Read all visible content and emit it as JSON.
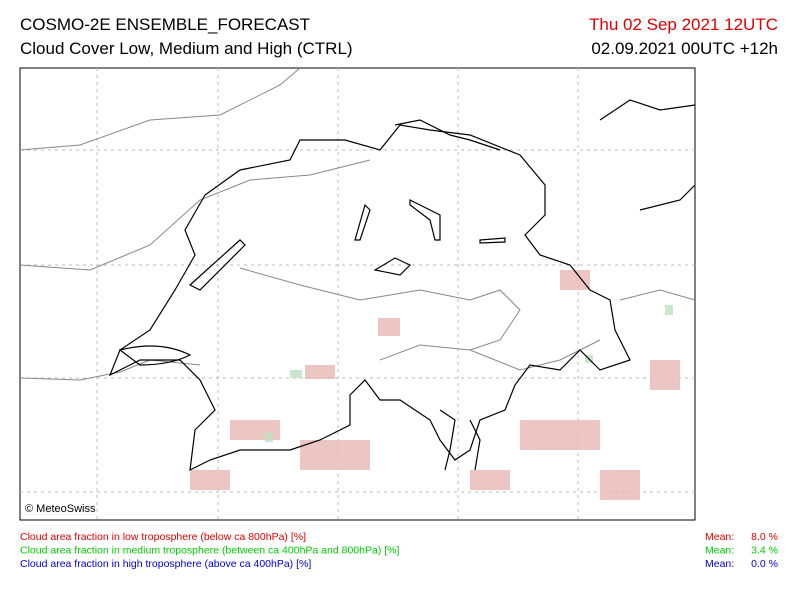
{
  "header": {
    "title": "COSMO-2E ENSEMBLE_FORECAST",
    "subtitle": "Cloud Cover Low, Medium and High (CTRL)",
    "valid_time": "Thu 02 Sep 2021 12UTC",
    "run_time": "02.09.2021 00UTC +12h"
  },
  "map": {
    "copyright": "© MeteoSwiss"
  },
  "legend": [
    {
      "label": "Cloud area fraction in low troposphere (below ca 800hPa) [%]",
      "mean_label": "Mean:",
      "mean": "8.0 %",
      "color": "#e00000"
    },
    {
      "label": "Cloud area fraction in medium troposphere (between ca 400hPa and 800hPa) [%]",
      "mean_label": "Mean:",
      "mean": "3.4 %",
      "color": "#00cc00"
    },
    {
      "label": "Cloud area fraction in high troposphere (above ca 400hPa) [%]",
      "mean_label": "Mean:",
      "mean": "0.0 %",
      "color": "#0000e0"
    }
  ]
}
